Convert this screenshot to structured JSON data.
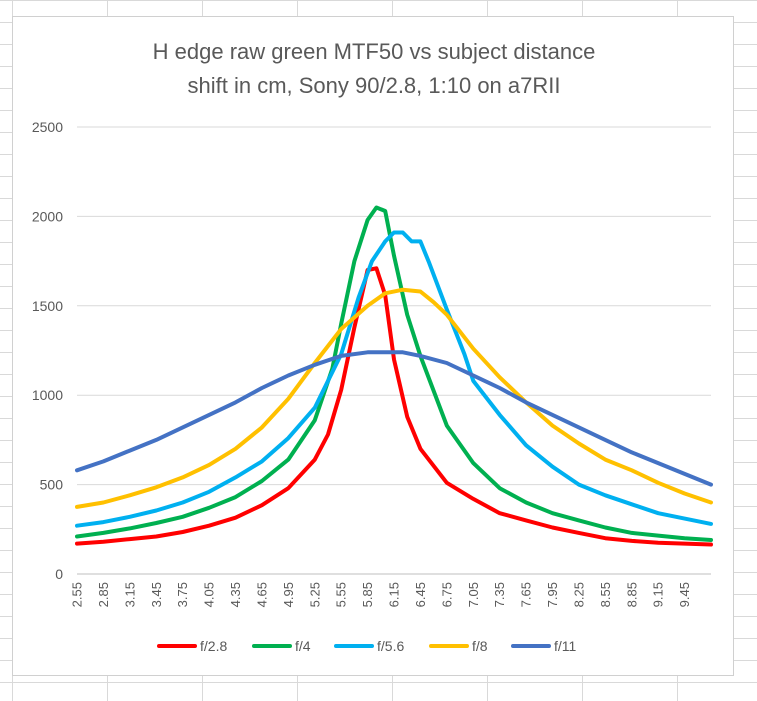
{
  "chart_data": {
    "type": "line",
    "title_lines": [
      "H edge raw  green MTF50 vs subject distance",
      "shift in cm, Sony 90/2.8, 1:10 on a7RII"
    ],
    "xlabel": "",
    "ylabel": "",
    "ylim": [
      0,
      2500
    ],
    "yticks": [
      0,
      500,
      1000,
      1500,
      2000,
      2500
    ],
    "x_range": [
      2.55,
      9.75
    ],
    "xticks": [
      "2.55",
      "2.85",
      "3.15",
      "3.45",
      "3.75",
      "4.05",
      "4.35",
      "4.65",
      "4.95",
      "5.25",
      "5.55",
      "5.85",
      "6.15",
      "6.45",
      "6.75",
      "7.05",
      "7.35",
      "7.65",
      "7.95",
      "8.25",
      "8.55",
      "8.85",
      "9.15",
      "9.45"
    ],
    "grid": "horizontal",
    "legend_position": "bottom",
    "series": [
      {
        "name": "f/2.8",
        "color": "#ff0000",
        "x": [
          2.55,
          2.85,
          3.15,
          3.45,
          3.75,
          4.05,
          4.35,
          4.65,
          4.95,
          5.25,
          5.4,
          5.55,
          5.7,
          5.85,
          5.95,
          6.05,
          6.15,
          6.3,
          6.45,
          6.75,
          7.05,
          7.35,
          7.65,
          7.95,
          8.25,
          8.55,
          8.85,
          9.15,
          9.45,
          9.75
        ],
        "y": [
          170,
          180,
          195,
          210,
          235,
          270,
          315,
          385,
          480,
          640,
          780,
          1030,
          1380,
          1700,
          1710,
          1560,
          1200,
          880,
          700,
          510,
          420,
          340,
          300,
          260,
          230,
          200,
          185,
          175,
          170,
          165
        ]
      },
      {
        "name": "f/4",
        "color": "#00b050",
        "x": [
          2.55,
          2.85,
          3.15,
          3.45,
          3.75,
          4.05,
          4.35,
          4.65,
          4.95,
          5.25,
          5.45,
          5.55,
          5.7,
          5.85,
          5.95,
          6.05,
          6.15,
          6.3,
          6.45,
          6.75,
          7.05,
          7.35,
          7.65,
          7.95,
          8.25,
          8.55,
          8.85,
          9.15,
          9.45,
          9.75
        ],
        "y": [
          210,
          230,
          255,
          285,
          320,
          370,
          430,
          520,
          640,
          860,
          1150,
          1400,
          1750,
          1980,
          2050,
          2030,
          1780,
          1450,
          1220,
          830,
          620,
          480,
          400,
          340,
          300,
          260,
          230,
          215,
          200,
          190
        ]
      },
      {
        "name": "f/5.6",
        "color": "#00b0f0",
        "x": [
          2.55,
          2.85,
          3.15,
          3.45,
          3.75,
          4.05,
          4.35,
          4.65,
          4.95,
          5.25,
          5.55,
          5.75,
          5.9,
          6.05,
          6.15,
          6.25,
          6.35,
          6.45,
          6.55,
          6.75,
          6.95,
          7.05,
          7.35,
          7.65,
          7.95,
          8.25,
          8.55,
          8.85,
          9.15,
          9.45,
          9.75
        ],
        "y": [
          270,
          290,
          320,
          355,
          400,
          460,
          540,
          630,
          760,
          930,
          1230,
          1550,
          1750,
          1860,
          1910,
          1910,
          1860,
          1860,
          1740,
          1480,
          1230,
          1080,
          890,
          720,
          600,
          500,
          440,
          390,
          340,
          310,
          280
        ]
      },
      {
        "name": "f/8",
        "color": "#ffc000",
        "x": [
          2.55,
          2.85,
          3.15,
          3.45,
          3.75,
          4.05,
          4.35,
          4.65,
          4.95,
          5.25,
          5.55,
          5.85,
          6.05,
          6.25,
          6.45,
          6.6,
          6.75,
          7.05,
          7.35,
          7.65,
          7.95,
          8.25,
          8.55,
          8.85,
          9.15,
          9.45,
          9.75
        ],
        "y": [
          375,
          400,
          440,
          485,
          540,
          610,
          700,
          820,
          980,
          1180,
          1370,
          1500,
          1570,
          1590,
          1580,
          1520,
          1450,
          1260,
          1100,
          960,
          830,
          730,
          640,
          580,
          510,
          450,
          400
        ]
      },
      {
        "name": "f/11",
        "color": "#4472c4",
        "x": [
          2.55,
          2.85,
          3.15,
          3.45,
          3.75,
          4.05,
          4.35,
          4.65,
          4.95,
          5.25,
          5.55,
          5.85,
          6.05,
          6.25,
          6.45,
          6.75,
          7.05,
          7.35,
          7.65,
          7.95,
          8.25,
          8.55,
          8.85,
          9.15,
          9.45,
          9.75
        ],
        "y": [
          580,
          630,
          690,
          750,
          820,
          890,
          960,
          1040,
          1110,
          1170,
          1220,
          1240,
          1240,
          1240,
          1220,
          1180,
          1110,
          1040,
          960,
          890,
          820,
          750,
          680,
          620,
          560,
          500
        ]
      }
    ]
  }
}
